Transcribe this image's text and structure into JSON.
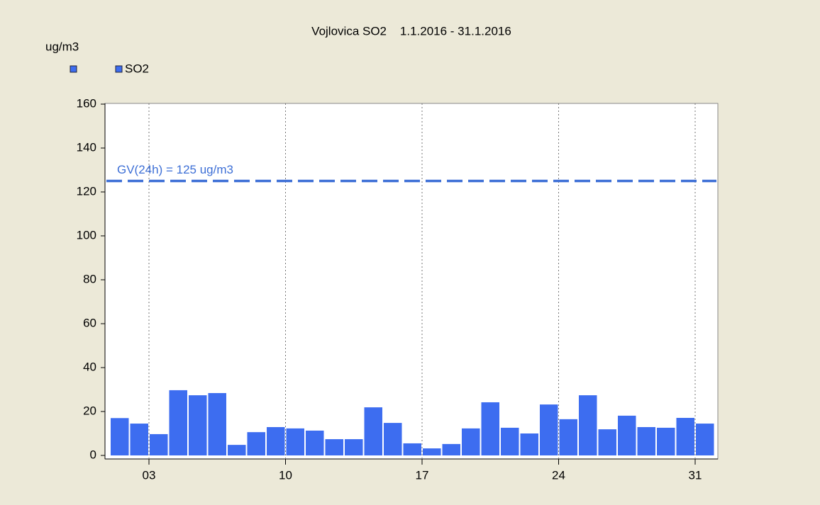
{
  "chart_data": {
    "type": "bar",
    "title": "Vojlovica SO2    1.1.2016 - 31.1.2016",
    "y_label": "ug/m3",
    "x": [
      1,
      2,
      3,
      4,
      5,
      6,
      7,
      8,
      9,
      10,
      11,
      12,
      13,
      14,
      15,
      16,
      17,
      18,
      19,
      20,
      21,
      22,
      23,
      24,
      25,
      26,
      27,
      28,
      29,
      30,
      31
    ],
    "series": [
      {
        "name": "SO2",
        "color": "#3d6df0",
        "values": [
          17,
          14.5,
          9.7,
          29.7,
          27.4,
          28.4,
          4.8,
          10.6,
          12.9,
          12.3,
          11.3,
          7.4,
          7.4,
          21.9,
          14.8,
          5.5,
          3.2,
          5.2,
          12.3,
          24.2,
          12.6,
          10,
          23.2,
          16.5,
          27.4,
          11.9,
          18.1,
          12.9,
          12.6,
          17.1,
          14.5
        ]
      }
    ],
    "xlim": [
      1,
      32
    ],
    "xticks": [
      {
        "value": 3,
        "label": "03"
      },
      10,
      17,
      24,
      31
    ],
    "ylim": [
      0,
      160
    ],
    "yticks": [
      0,
      20,
      40,
      60,
      80,
      100,
      120,
      140,
      160
    ],
    "threshold": {
      "value": 125,
      "label": "GV(24h) = 125 ug/m3",
      "color": "#3d6fd6"
    },
    "grid": true
  }
}
